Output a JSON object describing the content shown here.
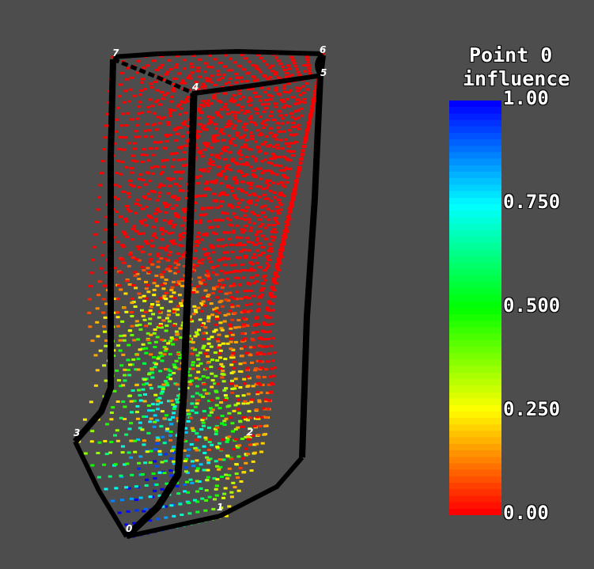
{
  "legend": {
    "title_line1": "Point 0",
    "title_line2": "influence",
    "ticks": [
      "1.00",
      "0.750",
      "0.500",
      "0.250",
      "0.00"
    ],
    "colors": [
      "#0000ff",
      "#00ffff",
      "#00ff00",
      "#ffff00",
      "#ff0000"
    ]
  },
  "vertices": [
    {
      "id": "0",
      "label": "0"
    },
    {
      "id": "1",
      "label": "1"
    },
    {
      "id": "2",
      "label": "2"
    },
    {
      "id": "3",
      "label": "3"
    },
    {
      "id": "4",
      "label": "4"
    },
    {
      "id": "5",
      "label": "5"
    },
    {
      "id": "6",
      "label": "6"
    },
    {
      "id": "7",
      "label": "7"
    }
  ],
  "background_color": "#4d4d4d"
}
